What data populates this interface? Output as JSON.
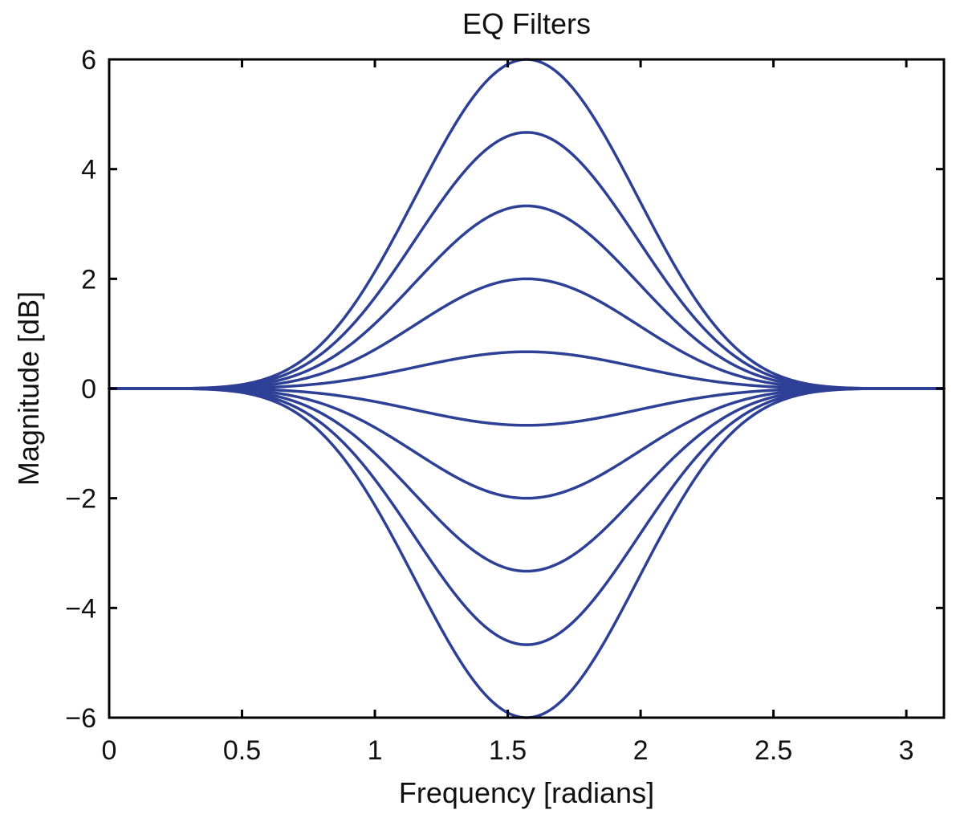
{
  "chart_data": {
    "type": "line",
    "title": "EQ Filters",
    "xlabel": "Frequency [radians]",
    "ylabel": "Magnitude [dB]",
    "xlim": [
      0,
      3.14159
    ],
    "ylim": [
      -6,
      6
    ],
    "xticks": [
      0,
      0.5,
      1,
      1.5,
      2,
      2.5,
      3
    ],
    "xtick_labels": [
      "0",
      "0.5",
      "1",
      "1.5",
      "2",
      "2.5",
      "3"
    ],
    "yticks": [
      6,
      4,
      2,
      0,
      -2,
      -4,
      -6
    ],
    "ytick_labels": [
      "6",
      "4",
      "2",
      "0",
      "−2",
      "−4",
      "−6"
    ],
    "grid": false,
    "line_color": "#2e3f96",
    "center_frequency": 1.5708,
    "peak_gains_db": [
      6,
      4.67,
      3.33,
      2,
      0.67,
      -0.67,
      -2,
      -3.33,
      -4.67,
      -6
    ]
  }
}
